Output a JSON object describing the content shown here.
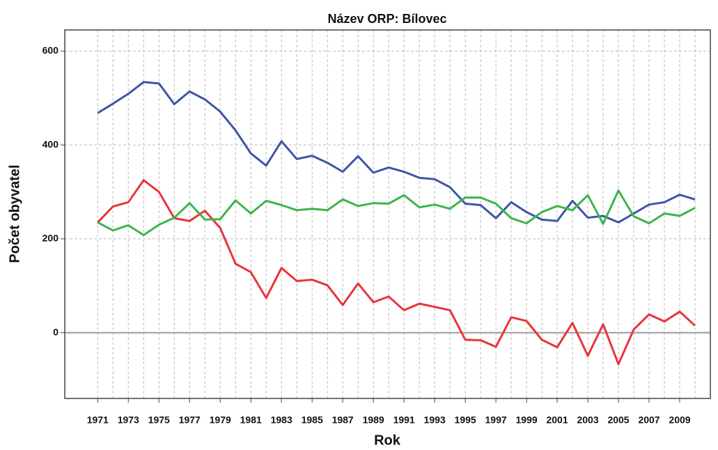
{
  "chart_data": {
    "type": "line",
    "title": "Název ORP: Bílovec",
    "xlabel": "Rok",
    "ylabel": "Počet obyvatel",
    "x": [
      1971,
      1972,
      1973,
      1974,
      1975,
      1976,
      1977,
      1978,
      1979,
      1980,
      1981,
      1982,
      1983,
      1984,
      1985,
      1986,
      1987,
      1988,
      1989,
      1990,
      1991,
      1992,
      1993,
      1994,
      1995,
      1996,
      1997,
      1998,
      1999,
      2000,
      2001,
      2002,
      2003,
      2004,
      2005,
      2006,
      2007,
      2008,
      2009,
      2010
    ],
    "series": [
      {
        "color": "#3e55a8",
        "values": [
          468,
          488,
          509,
          534,
          531,
          487,
          514,
          497,
          471,
          431,
          382,
          356,
          408,
          370,
          377,
          362,
          343,
          376,
          341,
          352,
          343,
          330,
          327,
          310,
          275,
          272,
          244,
          278,
          257,
          241,
          238,
          281,
          245,
          249,
          235,
          254,
          273,
          278,
          294,
          284
        ]
      },
      {
        "color": "#e8343a",
        "values": [
          235,
          269,
          278,
          325,
          300,
          244,
          238,
          260,
          223,
          147,
          129,
          74,
          138,
          110,
          113,
          101,
          59,
          105,
          65,
          77,
          48,
          62,
          55,
          48,
          -15,
          -16,
          -30,
          33,
          25,
          -15,
          -31,
          21,
          -49,
          18,
          -67,
          7,
          39,
          24,
          45,
          15
        ]
      },
      {
        "color": "#3cb54a",
        "values": [
          235,
          218,
          229,
          208,
          230,
          245,
          276,
          241,
          242,
          282,
          254,
          281,
          272,
          261,
          264,
          261,
          284,
          270,
          276,
          275,
          293,
          267,
          273,
          264,
          288,
          288,
          275,
          244,
          233,
          257,
          270,
          261,
          293,
          232,
          303,
          248,
          233,
          254,
          249,
          266
        ]
      }
    ],
    "xlim": [
      1968.85,
      2011
    ],
    "ylim": [
      -140,
      645
    ],
    "xticks": [
      1971,
      1973,
      1975,
      1977,
      1979,
      1981,
      1983,
      1985,
      1987,
      1989,
      1991,
      1993,
      1995,
      1997,
      1999,
      2001,
      2003,
      2005,
      2007,
      2009
    ],
    "yticks": [
      0,
      200,
      400,
      600
    ],
    "grid": true,
    "hline": 0
  }
}
